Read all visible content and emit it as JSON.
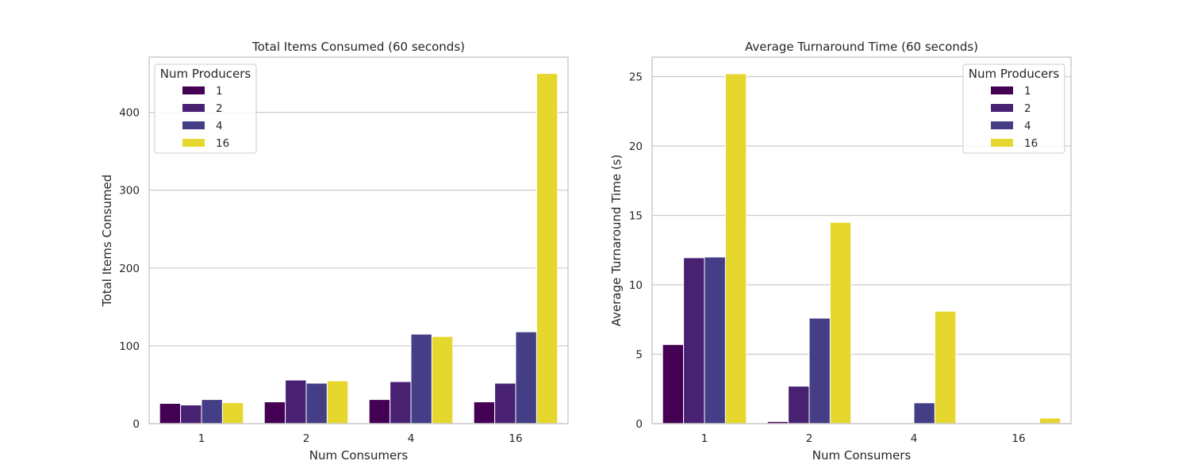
{
  "colors": {
    "series": [
      "#440154",
      "#482173",
      "#433e85",
      "#e6d72f"
    ],
    "grid": "#cccccc",
    "text": "#262626"
  },
  "chart_data": [
    {
      "type": "bar",
      "title": "Total Items Consumed (60 seconds)",
      "xlabel": "Num Consumers",
      "ylabel": "Total Items Consumed",
      "categories": [
        "1",
        "2",
        "4",
        "16"
      ],
      "ylim": [
        0,
        471
      ],
      "yticks": [
        0,
        100,
        200,
        300,
        400
      ],
      "grid": true,
      "legend": {
        "title": "Num Producers",
        "placement": "top-left"
      },
      "series": [
        {
          "name": "1",
          "values": [
            26,
            28,
            31,
            28
          ]
        },
        {
          "name": "2",
          "values": [
            24,
            56,
            54,
            52
          ]
        },
        {
          "name": "4",
          "values": [
            31,
            52,
            115,
            118
          ]
        },
        {
          "name": "16",
          "values": [
            27,
            55,
            112,
            450
          ]
        }
      ]
    },
    {
      "type": "bar",
      "title": "Average Turnaround Time (60 seconds)",
      "xlabel": "Num Consumers",
      "ylabel": "Average Turnaround Time (s)",
      "categories": [
        "1",
        "2",
        "4",
        "16"
      ],
      "ylim": [
        0,
        26.4
      ],
      "yticks": [
        0,
        5,
        10,
        15,
        20,
        25
      ],
      "grid": true,
      "legend": {
        "title": "Num Producers",
        "placement": "top-right"
      },
      "series": [
        {
          "name": "1",
          "values": [
            5.7,
            0.15,
            0,
            0
          ]
        },
        {
          "name": "2",
          "values": [
            11.95,
            2.7,
            0,
            0
          ]
        },
        {
          "name": "4",
          "values": [
            12.0,
            7.6,
            1.5,
            0
          ]
        },
        {
          "name": "16",
          "values": [
            25.2,
            14.5,
            8.1,
            0.4
          ]
        }
      ]
    }
  ]
}
